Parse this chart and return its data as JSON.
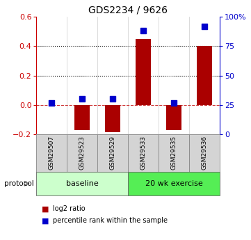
{
  "title": "GDS2234 / 9626",
  "samples": [
    "GSM29507",
    "GSM29523",
    "GSM29529",
    "GSM29533",
    "GSM29535",
    "GSM29536"
  ],
  "log2_ratio": [
    0.0,
    -0.17,
    -0.185,
    0.45,
    -0.17,
    0.4
  ],
  "percentile_rank": [
    27,
    30,
    30,
    88,
    27,
    92
  ],
  "groups": [
    {
      "label": "baseline",
      "start": 0,
      "end": 3,
      "color": "#ccffcc"
    },
    {
      "label": "20 wk exercise",
      "start": 3,
      "end": 6,
      "color": "#55ee55"
    }
  ],
  "bar_color": "#aa0000",
  "dot_color": "#0000cc",
  "left_ylim": [
    -0.2,
    0.6
  ],
  "right_ylim": [
    0,
    100
  ],
  "left_yticks": [
    -0.2,
    0.0,
    0.2,
    0.4,
    0.6
  ],
  "right_yticks": [
    0,
    25,
    50,
    75,
    100
  ],
  "right_yticklabels": [
    "0",
    "25",
    "50",
    "75",
    "100%"
  ],
  "hline_y": 0.0,
  "dotted_lines": [
    0.2,
    0.4
  ],
  "bar_width": 0.5,
  "dot_size": 40,
  "cell_color": "#d4d4d4",
  "cell_edge_color": "#888888",
  "plot_bg": "#ffffff"
}
